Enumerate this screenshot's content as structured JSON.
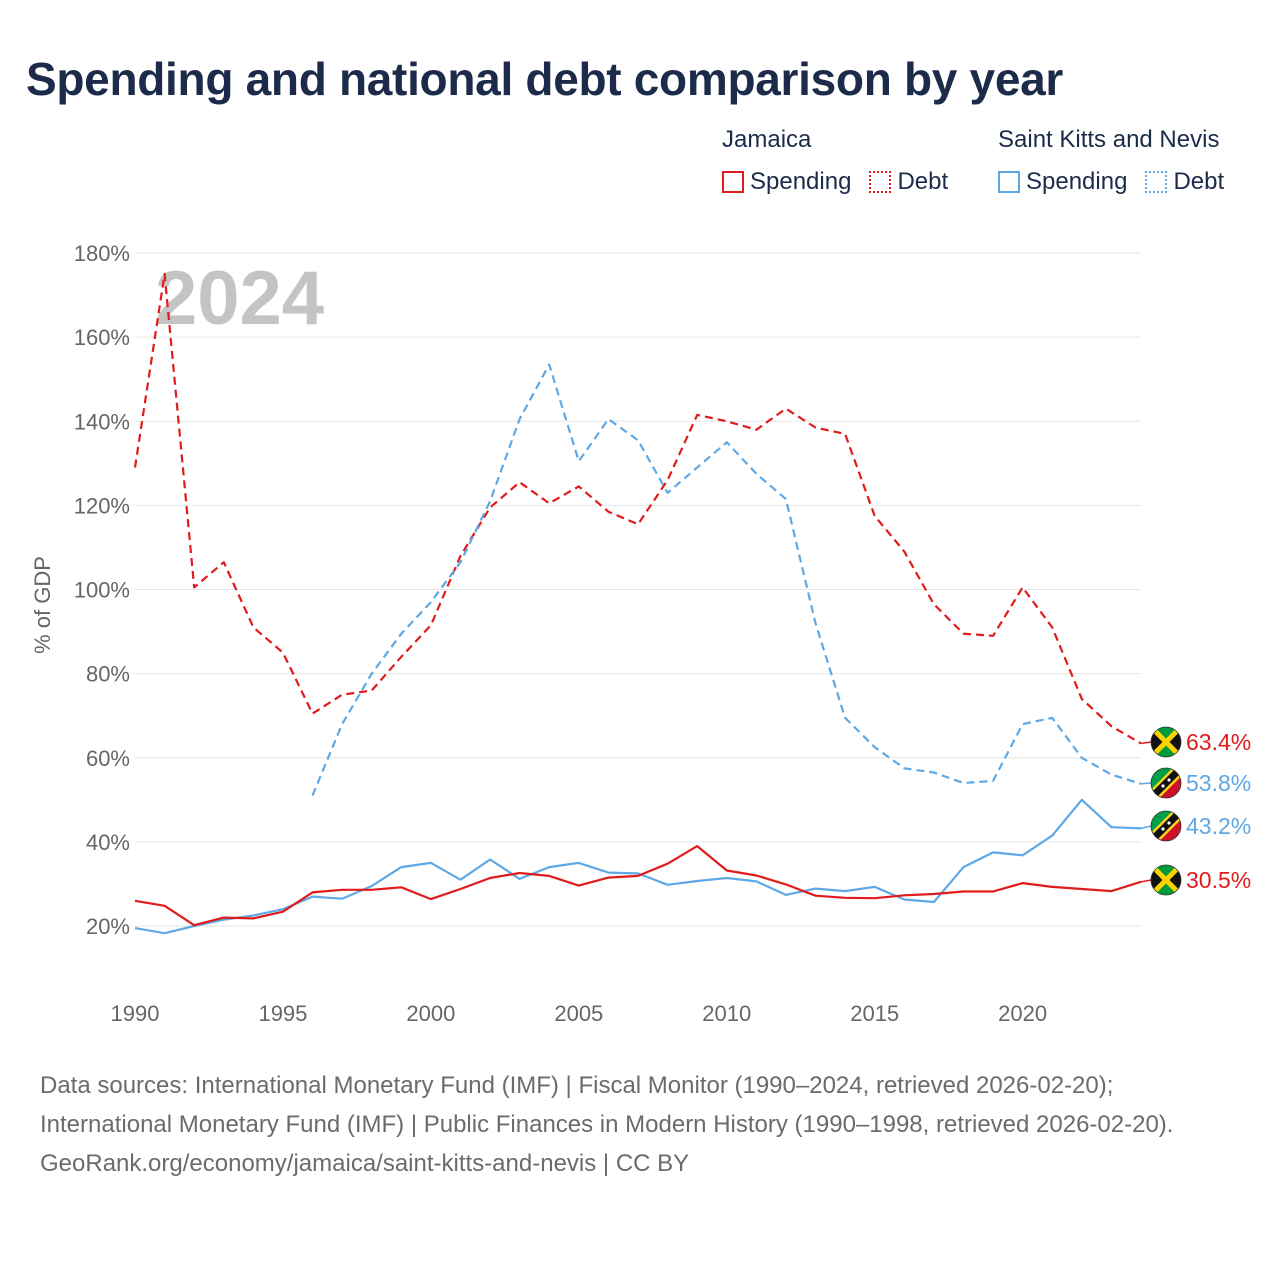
{
  "title": "Spending and national debt comparison by year",
  "legend": {
    "jamaica": {
      "label": "Jamaica",
      "spending": "Spending",
      "debt": "Debt"
    },
    "skn": {
      "label": "Saint Kitts and Nevis",
      "spending": "Spending",
      "debt": "Debt"
    }
  },
  "colors": {
    "jamaica": "#e01b1b",
    "skn": "#5ea8e6",
    "grid": "#e6e6e6",
    "axis_text": "#666666",
    "year_watermark": "#c4c4c4"
  },
  "chart_data": {
    "type": "line",
    "year_watermark": "2024",
    "ylabel": "% of GDP",
    "ylim": [
      10,
      180
    ],
    "yticks": [
      20,
      40,
      60,
      80,
      100,
      120,
      140,
      160,
      180
    ],
    "ytick_labels": [
      "20%",
      "40%",
      "60%",
      "80%",
      "100%",
      "120%",
      "140%",
      "160%",
      "180%"
    ],
    "xlim": [
      1990,
      2024
    ],
    "xticks": [
      1990,
      1995,
      2000,
      2005,
      2010,
      2015,
      2020
    ],
    "xtick_labels": [
      "1990",
      "1995",
      "2000",
      "2005",
      "2010",
      "2015",
      "2020"
    ],
    "series": [
      {
        "name": "Jamaica Debt",
        "country": "jamaica",
        "style": "dashed",
        "x": [
          1990,
          1991,
          1992,
          1993,
          1994,
          1995,
          1996,
          1997,
          1998,
          1999,
          2000,
          2001,
          2002,
          2003,
          2004,
          2005,
          2006,
          2007,
          2008,
          2009,
          2010,
          2011,
          2012,
          2013,
          2014,
          2015,
          2016,
          2017,
          2018,
          2019,
          2020,
          2021,
          2022,
          2023,
          2024
        ],
        "values": [
          129,
          175,
          100.5,
          106.5,
          91,
          85,
          70.5,
          75,
          76,
          84,
          91.5,
          108,
          119.5,
          125.5,
          120.5,
          124.5,
          118.5,
          115.5,
          126,
          141.5,
          140,
          138,
          143,
          138.5,
          137,
          117.5,
          109,
          96.5,
          89.5,
          89,
          100.5,
          91,
          74,
          67.5,
          63.4
        ],
        "end_label": "63.4%"
      },
      {
        "name": "Saint Kitts and Nevis Debt",
        "country": "skn",
        "style": "dashed",
        "x": [
          1996,
          1997,
          1998,
          1999,
          2000,
          2001,
          2002,
          2003,
          2004,
          2005,
          2006,
          2007,
          2008,
          2009,
          2010,
          2011,
          2012,
          2013,
          2014,
          2015,
          2016,
          2017,
          2018,
          2019,
          2020,
          2021,
          2022,
          2023,
          2024
        ],
        "values": [
          51,
          68,
          80,
          89.5,
          97,
          106.5,
          121,
          140.5,
          153.5,
          130.5,
          140.5,
          135.5,
          123,
          129,
          135,
          127.5,
          121.5,
          92,
          69.5,
          62.5,
          57.5,
          56.5,
          54,
          54.5,
          68,
          69.5,
          60,
          56,
          53.8
        ],
        "end_label": "53.8%"
      },
      {
        "name": "Saint Kitts and Nevis Spending",
        "country": "skn",
        "style": "solid",
        "x": [
          1990,
          1991,
          1992,
          1993,
          1994,
          1995,
          1996,
          1997,
          1998,
          1999,
          2000,
          2001,
          2002,
          2003,
          2004,
          2005,
          2006,
          2007,
          2008,
          2009,
          2010,
          2011,
          2012,
          2013,
          2014,
          2015,
          2016,
          2017,
          2018,
          2019,
          2020,
          2021,
          2022,
          2023,
          2024
        ],
        "values": [
          19.5,
          18.3,
          20,
          21.5,
          22.5,
          24,
          27,
          26.5,
          29.5,
          34,
          35,
          31,
          35.8,
          31.2,
          34,
          35,
          32.7,
          32.5,
          29.8,
          30.7,
          31.4,
          30.6,
          27.4,
          28.9,
          28.3,
          29.3,
          26.3,
          25.7,
          34,
          37.5,
          36.8,
          41.5,
          50,
          43.5,
          43.2
        ],
        "end_label": "43.2%"
      },
      {
        "name": "Jamaica Spending",
        "country": "jamaica",
        "style": "solid",
        "x": [
          1990,
          1991,
          1992,
          1993,
          1994,
          1995,
          1996,
          1997,
          1998,
          1999,
          2000,
          2001,
          2002,
          2003,
          2004,
          2005,
          2006,
          2007,
          2008,
          2009,
          2010,
          2011,
          2012,
          2013,
          2014,
          2015,
          2016,
          2017,
          2018,
          2019,
          2020,
          2021,
          2022,
          2023,
          2024
        ],
        "values": [
          26,
          24.8,
          20.2,
          22,
          21.8,
          23.4,
          28,
          28.6,
          28.6,
          29.2,
          26.4,
          28.8,
          31.4,
          32.6,
          31.9,
          29.6,
          31.5,
          31.9,
          34.8,
          39,
          33.2,
          32,
          29.9,
          27.2,
          26.7,
          26.6,
          27.3,
          27.6,
          28.2,
          28.2,
          30.2,
          29.3,
          28.8,
          28.3,
          30.5
        ],
        "end_label": "30.5%"
      }
    ]
  },
  "footer": {
    "sources": "Data sources: International Monetary Fund (IMF) | Fiscal Monitor (1990–2024, retrieved 2026-02-20); International Monetary Fund (IMF) | Public Finances in Modern History (1990–1998, retrieved 2026-02-20).",
    "link": "GeoRank.org/economy/jamaica/saint-kitts-and-nevis | CC BY"
  }
}
